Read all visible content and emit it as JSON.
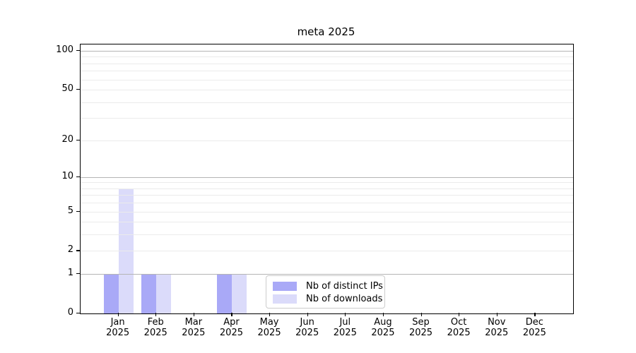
{
  "figure": {
    "title": "meta 2025",
    "background": "#ffffff"
  },
  "chart_data": {
    "type": "bar",
    "title": "meta 2025",
    "categories": [
      "Jan",
      "Feb",
      "Mar",
      "Apr",
      "May",
      "Jun",
      "Jul",
      "Aug",
      "Sep",
      "Oct",
      "Nov",
      "Dec"
    ],
    "category_year": "2025",
    "series": [
      {
        "name": "Nb of distinct IPs",
        "color": "#a9a9f7",
        "values": [
          1,
          1,
          0,
          1,
          0,
          0,
          0,
          0,
          0,
          0,
          0,
          0
        ]
      },
      {
        "name": "Nb of downloads",
        "color": "#dbdbfa",
        "values": [
          8,
          1,
          0,
          1,
          0,
          0,
          0,
          0,
          0,
          0,
          0,
          0
        ]
      }
    ],
    "xlabel": "",
    "ylabel": "",
    "y_axis": {
      "scale": "log1p",
      "tick_values": [
        0,
        1,
        2,
        5,
        10,
        20,
        50,
        100
      ],
      "major_gridlines": [
        1,
        10,
        100
      ],
      "minor_gridlines": [
        2,
        3,
        4,
        5,
        6,
        7,
        8,
        9,
        20,
        30,
        40,
        50,
        60,
        70,
        80,
        90
      ],
      "ylim": [
        0,
        112
      ]
    },
    "grid": true,
    "legend_position": "lower-center-inside"
  },
  "colors": {
    "axis": "#000000",
    "grid_major": "#b5b5b5",
    "grid_minor": "#ebebeb",
    "legend_border": "#cccccc"
  }
}
